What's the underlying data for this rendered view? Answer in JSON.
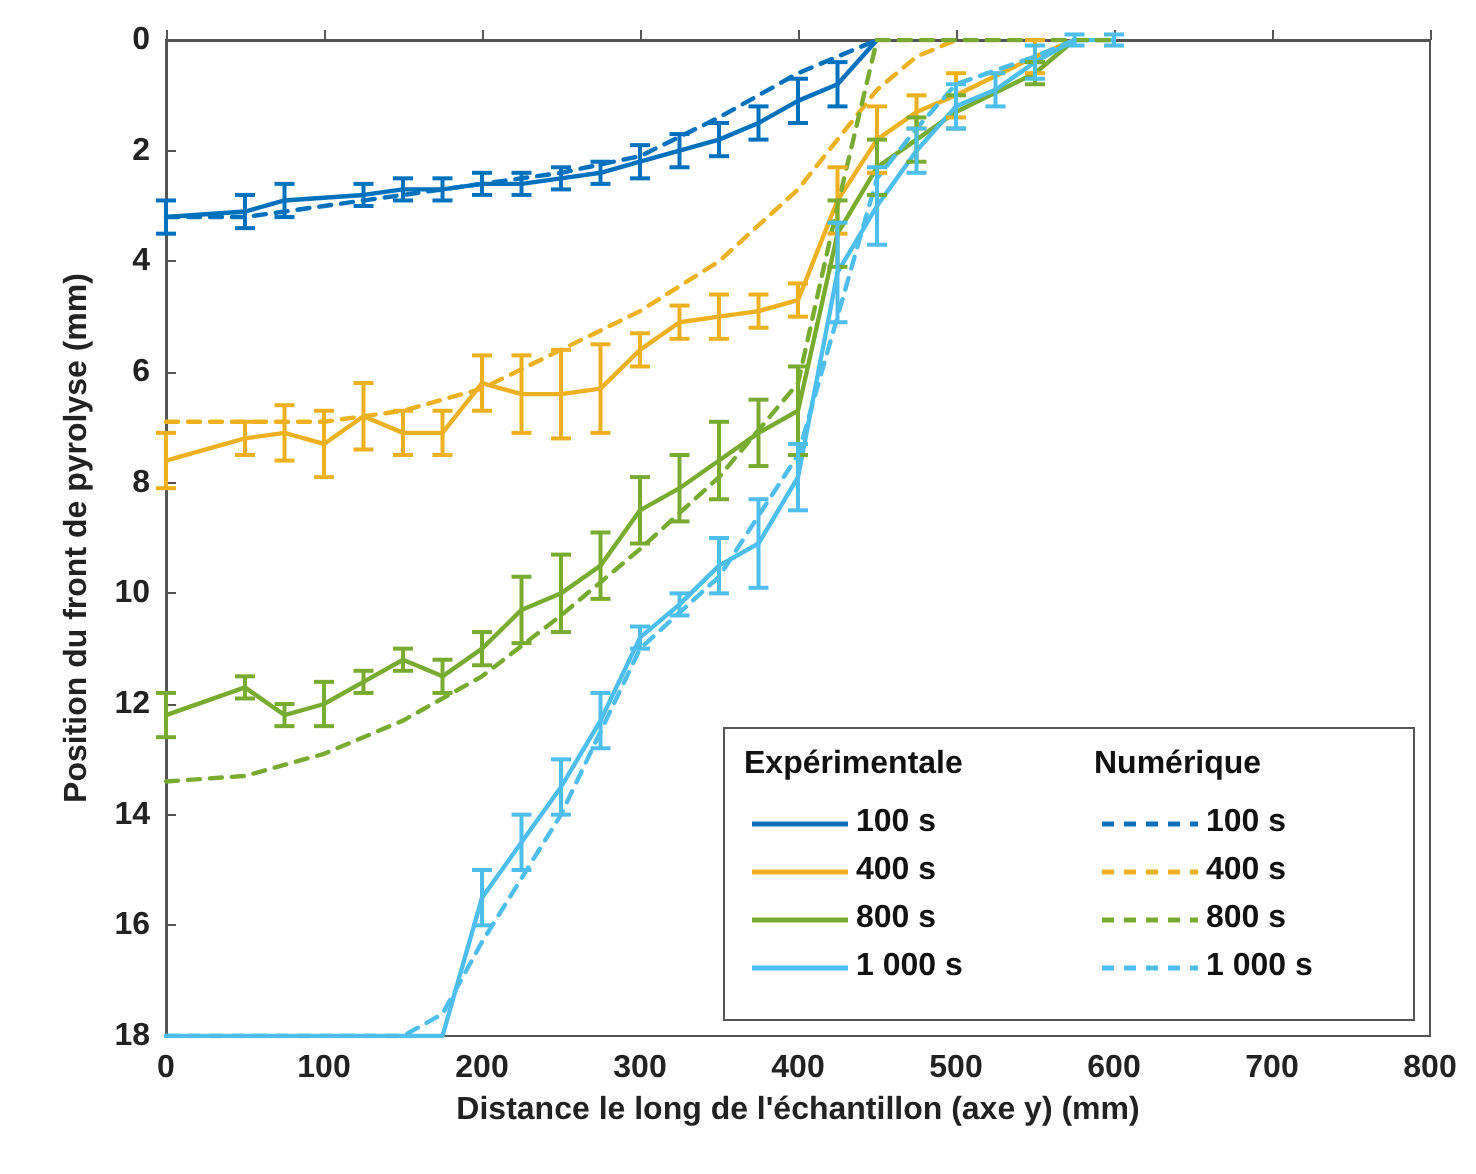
{
  "chart_data": {
    "type": "line",
    "xlabel": "Distance le long de l'échantillon (axe y) (mm)",
    "ylabel": "Position du front de pyrolyse (mm)",
    "xlim": [
      0,
      800
    ],
    "xticks": [
      0,
      100,
      200,
      300,
      400,
      500,
      600,
      700,
      800
    ],
    "ylim": [
      18,
      0
    ],
    "yticks": [
      0,
      2,
      4,
      6,
      8,
      10,
      12,
      14,
      16,
      18
    ],
    "grid": false,
    "legend": "bottom right",
    "marker": "none",
    "annotations": [
      "Expérimentale",
      "Numérique"
    ],
    "series": [
      {
        "name": "100 s",
        "color": "#0072bd",
        "line_style": "solid",
        "x": [
          0,
          50,
          75,
          125,
          150,
          175,
          200,
          225,
          250,
          275,
          300,
          325,
          350,
          375,
          400,
          425,
          450
        ],
        "values": [
          3.2,
          3.1,
          2.9,
          2.8,
          2.7,
          2.7,
          2.6,
          2.6,
          2.5,
          2.4,
          2.2,
          2.0,
          1.8,
          1.5,
          1.1,
          0.8,
          0
        ],
        "errors": [
          0.3,
          0.3,
          0.3,
          0.2,
          0.2,
          0.2,
          0.2,
          0.2,
          0.2,
          0.2,
          0.3,
          0.3,
          0.3,
          0.3,
          0.4,
          0.4,
          null
        ]
      },
      {
        "name": "400 s",
        "color": "#edb120",
        "line_style": "solid",
        "x": [
          0,
          50,
          75,
          100,
          125,
          150,
          175,
          200,
          225,
          250,
          275,
          300,
          325,
          350,
          375,
          400,
          425,
          450,
          475,
          500,
          550,
          575
        ],
        "values": [
          7.6,
          7.2,
          7.1,
          7.3,
          6.8,
          7.1,
          7.1,
          6.2,
          6.4,
          6.4,
          6.3,
          5.6,
          5.1,
          5.0,
          4.9,
          4.7,
          2.9,
          1.8,
          1.3,
          1.0,
          0.3,
          0
        ],
        "errors": [
          0.5,
          0.3,
          0.5,
          0.6,
          0.6,
          0.4,
          0.4,
          0.5,
          0.7,
          0.8,
          0.8,
          0.3,
          0.3,
          0.4,
          0.3,
          0.3,
          0.6,
          0.6,
          0.3,
          0.4,
          0.3,
          null
        ]
      },
      {
        "name": "800 s",
        "color": "#77ac30",
        "line_style": "solid",
        "x": [
          0,
          50,
          75,
          100,
          125,
          150,
          175,
          200,
          225,
          250,
          275,
          300,
          325,
          350,
          375,
          400,
          425,
          450,
          475,
          500,
          550,
          575
        ],
        "values": [
          12.2,
          11.7,
          12.2,
          12.0,
          11.6,
          11.2,
          11.5,
          11.0,
          10.3,
          10.0,
          9.5,
          8.5,
          8.1,
          7.6,
          7.1,
          6.7,
          3.5,
          2.3,
          1.8,
          1.3,
          0.6,
          0
        ],
        "errors": [
          0.4,
          0.2,
          0.2,
          0.4,
          0.2,
          0.2,
          0.3,
          0.3,
          0.6,
          0.7,
          0.6,
          0.6,
          0.6,
          0.7,
          0.6,
          0.8,
          0.6,
          0.5,
          0.4,
          0.3,
          0.2,
          null
        ]
      },
      {
        "name": "1 000 s",
        "color": "#4dbeee",
        "line_style": "solid",
        "x": [
          0,
          50,
          75,
          100,
          125,
          150,
          175,
          200,
          225,
          250,
          275,
          300,
          325,
          350,
          375,
          400,
          425,
          450,
          475,
          500,
          525,
          550,
          575,
          600
        ],
        "values": [
          18,
          18,
          18,
          18,
          18,
          18,
          18,
          15.5,
          14.5,
          13.5,
          12.3,
          10.8,
          10.2,
          9.5,
          9.1,
          7.9,
          4.2,
          3.0,
          2.0,
          1.2,
          0.9,
          0.4,
          0,
          0
        ],
        "errors": [
          null,
          null,
          null,
          null,
          null,
          null,
          null,
          0.5,
          0.5,
          0.5,
          0.5,
          0.2,
          0.2,
          0.5,
          0.8,
          0.6,
          0.9,
          0.7,
          0.4,
          0.4,
          0.3,
          0.3,
          0.1,
          0.1
        ]
      },
      {
        "name": "100 s",
        "color": "#0072bd",
        "line_style": "dashed",
        "x": [
          0,
          50,
          100,
          150,
          200,
          250,
          300,
          350,
          400,
          450
        ],
        "values": [
          3.2,
          3.2,
          3.0,
          2.8,
          2.6,
          2.4,
          2.1,
          1.4,
          0.6,
          0
        ]
      },
      {
        "name": "400 s",
        "color": "#edb120",
        "line_style": "dashed",
        "x": [
          0,
          50,
          100,
          150,
          200,
          250,
          300,
          350,
          400,
          450,
          475,
          500
        ],
        "values": [
          6.9,
          6.9,
          6.9,
          6.7,
          6.3,
          5.6,
          4.9,
          4.0,
          2.7,
          0.9,
          0.3,
          0
        ]
      },
      {
        "name": "800 s",
        "color": "#77ac30",
        "line_style": "dashed",
        "x": [
          0,
          50,
          100,
          150,
          200,
          250,
          300,
          350,
          400,
          425,
          450,
          600
        ],
        "values": [
          13.4,
          13.3,
          12.9,
          12.3,
          11.5,
          10.4,
          9.2,
          7.9,
          6.2,
          3.0,
          0,
          0
        ]
      },
      {
        "name": "1 000 s",
        "color": "#4dbeee",
        "line_style": "dashed",
        "x": [
          0,
          150,
          175,
          200,
          250,
          300,
          350,
          400,
          425,
          450,
          475,
          500,
          550,
          575
        ],
        "values": [
          18,
          18,
          17.6,
          16.3,
          14,
          11,
          9.7,
          7.5,
          5,
          2.5,
          1.6,
          0.8,
          0.3,
          0
        ]
      }
    ]
  }
}
